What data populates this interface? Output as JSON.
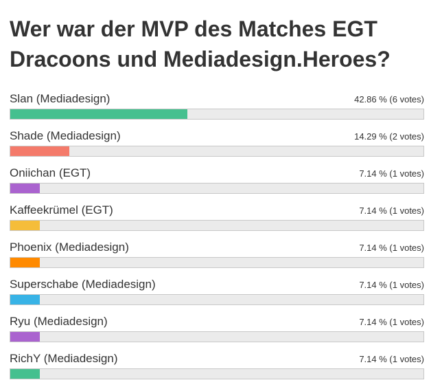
{
  "poll": {
    "title": "Wer war der MVP des Matches EGT Dracoons und Mediadesign.Heroes?",
    "answers": [
      {
        "label": "Slan (Mediadesign)",
        "percent_text": "42.86 %",
        "votes_text": "(6 votes)",
        "share": 0.4286,
        "color": "#45c08f"
      },
      {
        "label": "Shade (Mediadesign)",
        "percent_text": "14.29 %",
        "votes_text": "(2 votes)",
        "share": 0.1429,
        "color": "#f47a6a"
      },
      {
        "label": "Oniichan (EGT)",
        "percent_text": "7.14 %",
        "votes_text": "(1 votes)",
        "share": 0.0714,
        "color": "#aa63cf"
      },
      {
        "label": "Kaffeekrümel (EGT)",
        "percent_text": "7.14 %",
        "votes_text": "(1 votes)",
        "share": 0.0714,
        "color": "#f5bd3a"
      },
      {
        "label": "Phoenix (Mediadesign)",
        "percent_text": "7.14 %",
        "votes_text": "(1 votes)",
        "share": 0.0714,
        "color": "#ff8a00"
      },
      {
        "label": "Superschabe (Mediadesign)",
        "percent_text": "7.14 %",
        "votes_text": "(1 votes)",
        "share": 0.0714,
        "color": "#38b3e6"
      },
      {
        "label": "Ryu (Mediadesign)",
        "percent_text": "7.14 %",
        "votes_text": "(1 votes)",
        "share": 0.0714,
        "color": "#aa63cf"
      },
      {
        "label": "RichY (Mediadesign)",
        "percent_text": "7.14 %",
        "votes_text": "(1 votes)",
        "share": 0.0714,
        "color": "#45c08f"
      }
    ]
  }
}
